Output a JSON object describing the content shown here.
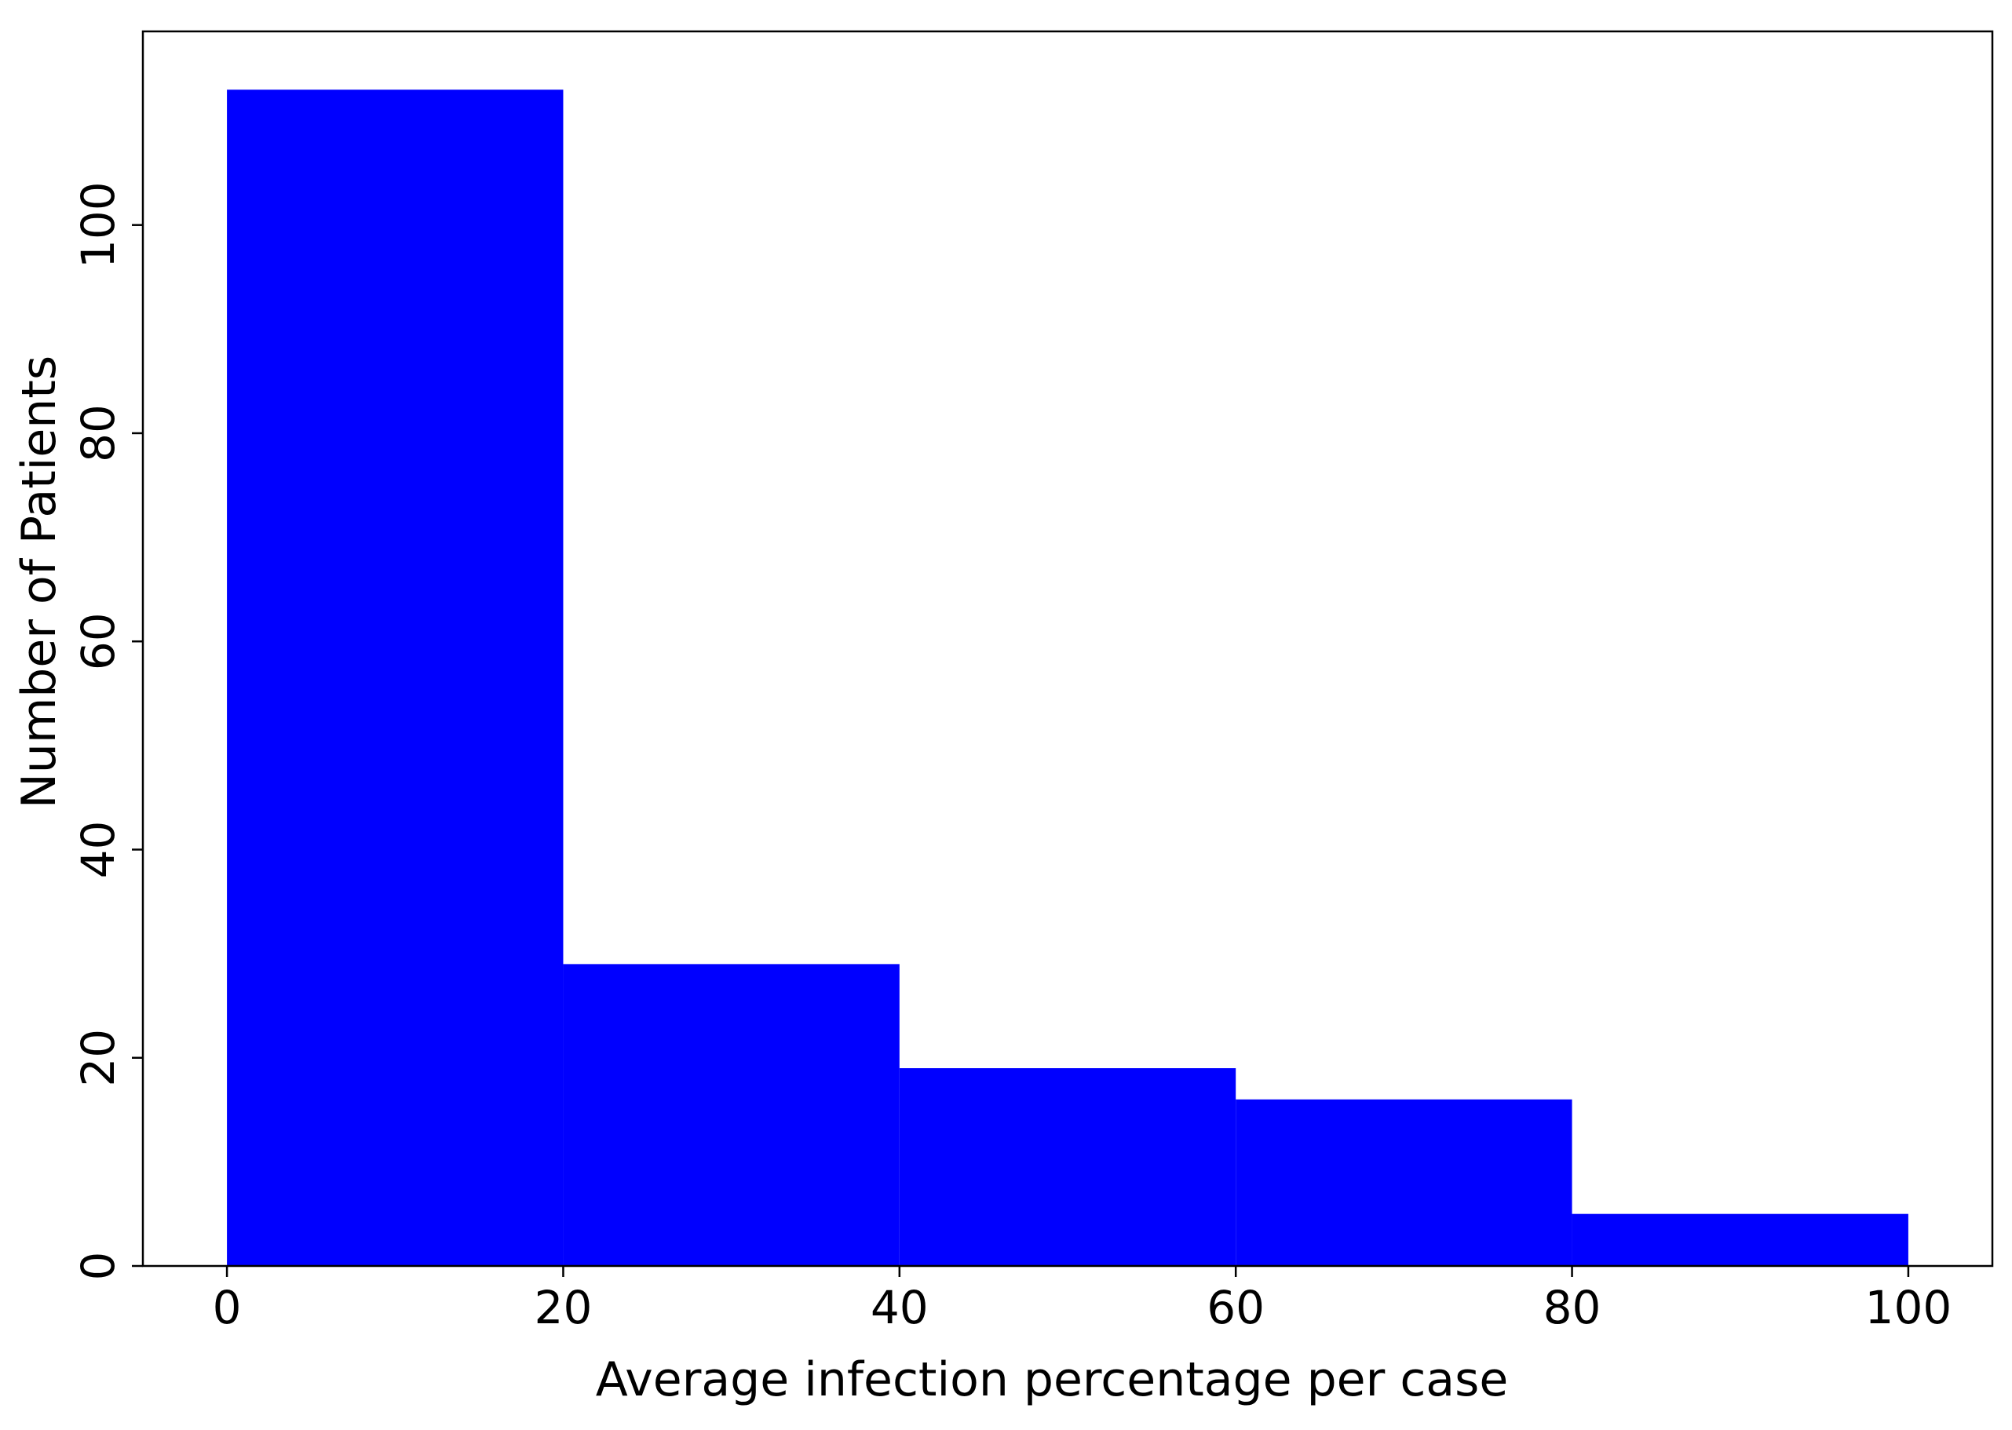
{
  "chart_data": {
    "type": "bar",
    "histogram": true,
    "bins": [
      {
        "start": 0,
        "end": 20,
        "value": 113
      },
      {
        "start": 20,
        "end": 40,
        "value": 29
      },
      {
        "start": 40,
        "end": 60,
        "value": 19
      },
      {
        "start": 60,
        "end": 80,
        "value": 16
      },
      {
        "start": 80,
        "end": 100,
        "value": 5
      }
    ],
    "bar_color": "#0000ff",
    "xlabel": "Average infection percentage per case",
    "ylabel": "Number of Patients",
    "xlim": [
      -5,
      105
    ],
    "ylim": [
      0,
      118.6
    ],
    "xticks": [
      "0",
      "20",
      "40",
      "60",
      "80",
      "100"
    ],
    "yticks": [
      "0",
      "20",
      "40",
      "60",
      "80",
      "100"
    ],
    "grid": false,
    "legend": "none"
  }
}
